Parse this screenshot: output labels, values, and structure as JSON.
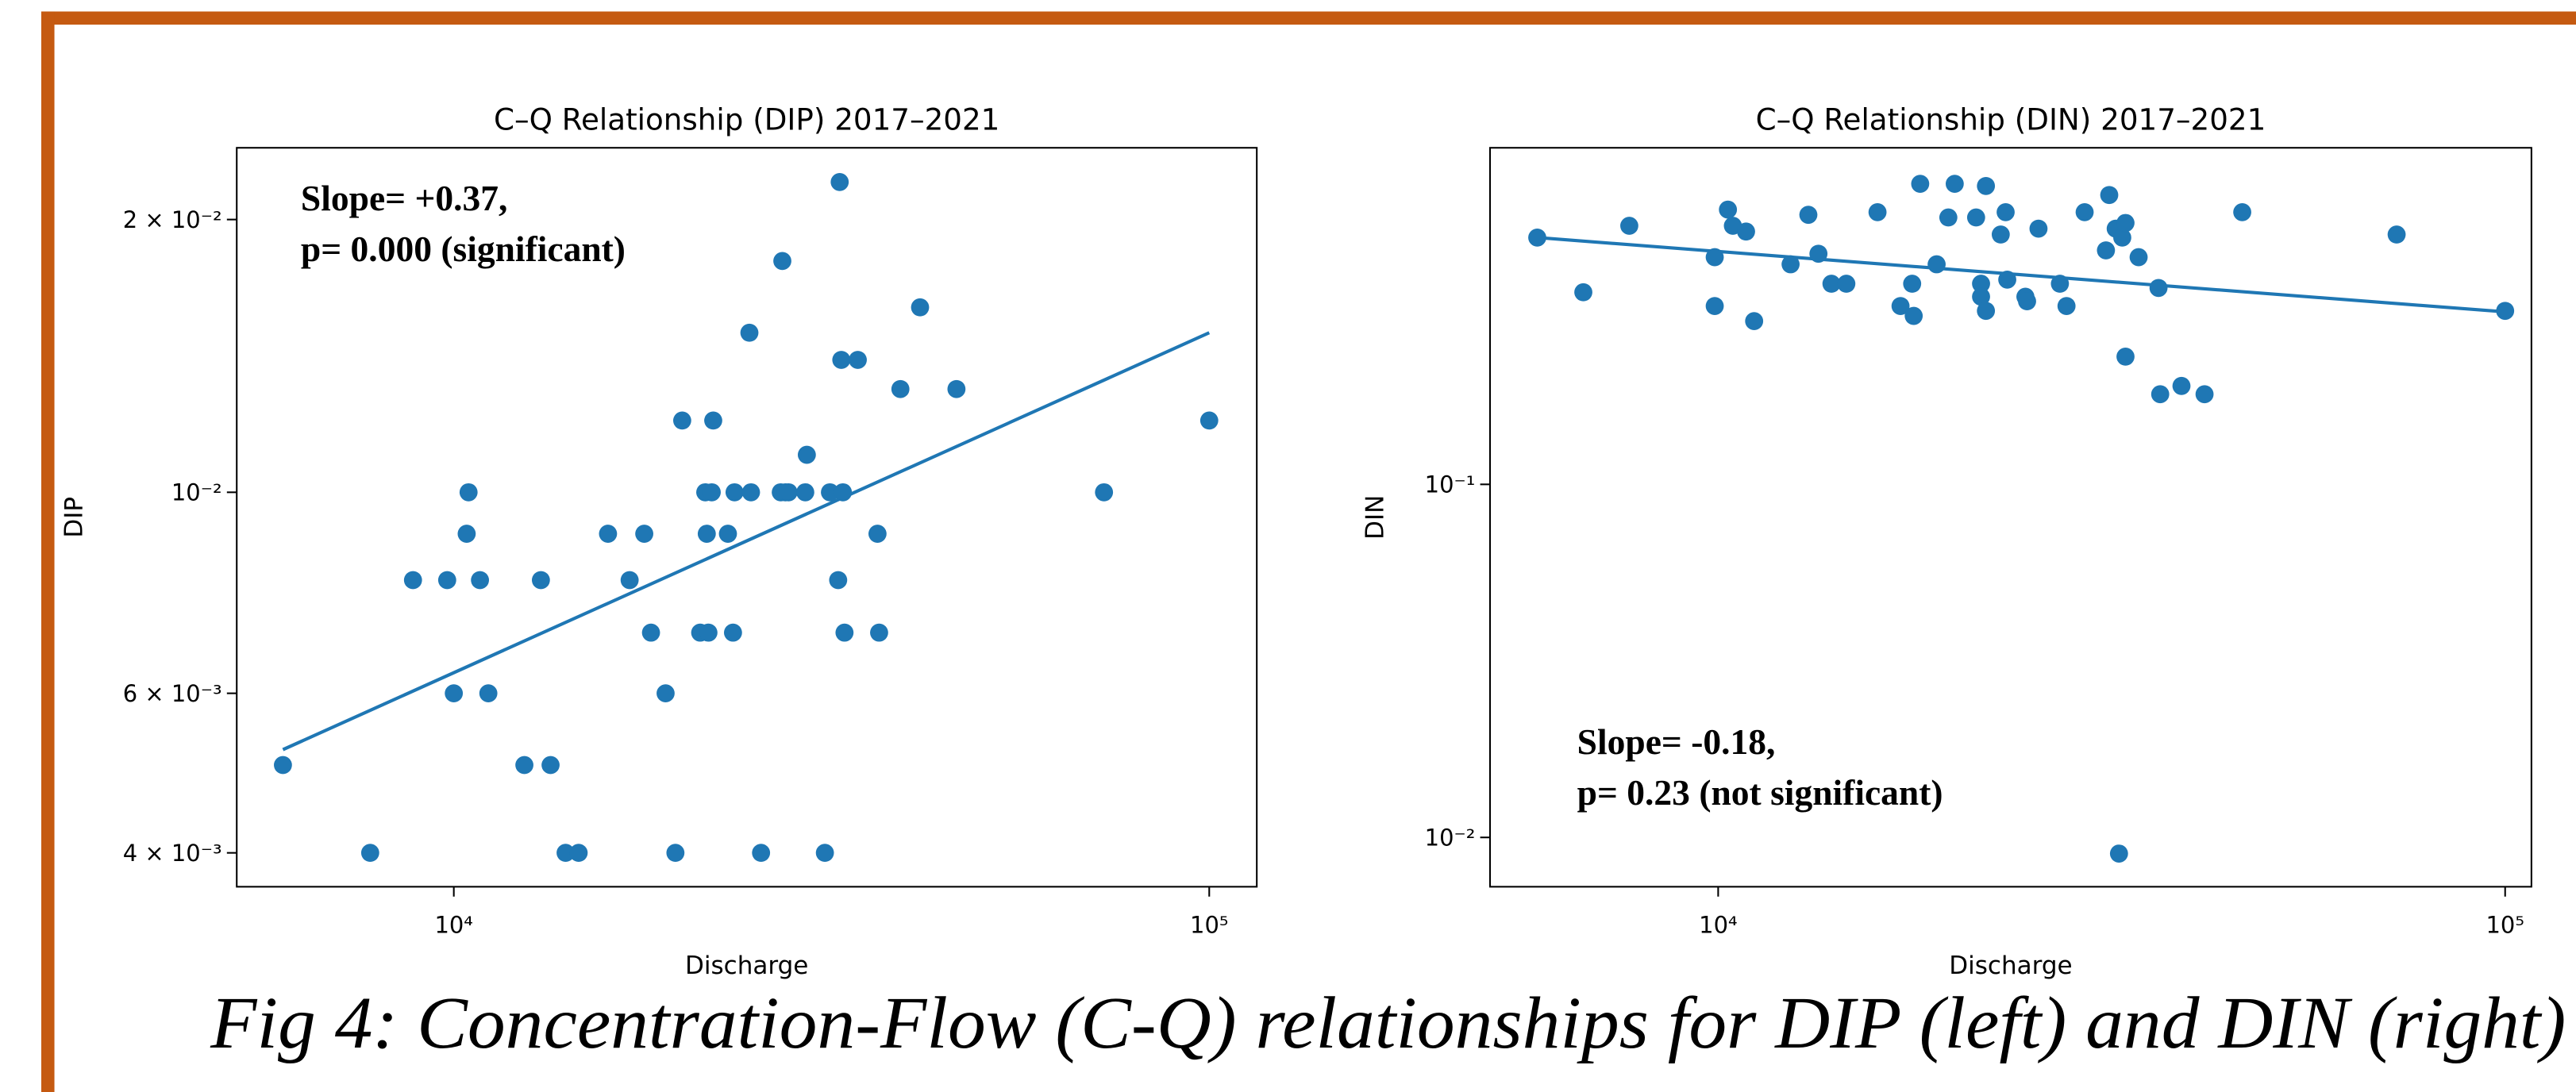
{
  "chart_data": [
    {
      "type": "scatter",
      "title": "C–Q Relationship (DIP) 2017–2021",
      "x_label": "Discharge",
      "y_label": "DIP",
      "log_x": true,
      "log_y": true,
      "color": "#1f77b4",
      "xlim": [
        5160,
        115600
      ],
      "ylim": [
        0.00367,
        0.024
      ],
      "xticks": [
        {
          "value": 10000,
          "label": "10⁴"
        },
        {
          "value": 100000,
          "label": "10⁵"
        }
      ],
      "yticks": [
        {
          "value": 0.02,
          "label": "2 × 10⁻²"
        },
        {
          "value": 0.01,
          "label": "10⁻²"
        },
        {
          "value": 0.006,
          "label": "6 × 10⁻³"
        },
        {
          "value": 0.004,
          "label": "4 × 10⁻³"
        }
      ],
      "x": [
        5940,
        7750,
        8830,
        9800,
        10000,
        10400,
        10460,
        10830,
        11110,
        12400,
        13040,
        13430,
        14060,
        14630,
        16000,
        17090,
        17870,
        18240,
        19070,
        19650,
        20060,
        21190,
        21520,
        21620,
        21730,
        21950,
        22050,
        23060,
        23420,
        23530,
        24620,
        24740,
        25510,
        27090,
        27220,
        27480,
        27740,
        29190,
        29330,
        30990,
        31470,
        32270,
        32420,
        32580,
        32740,
        32900,
        34260,
        36380,
        36560,
        39010,
        41420,
        46280,
        72560,
        100000
      ],
      "y": [
        0.005,
        0.004,
        0.008,
        0.008,
        0.006,
        0.009,
        0.01,
        0.008,
        0.006,
        0.005,
        0.008,
        0.005,
        0.004,
        0.004,
        0.009,
        0.008,
        0.009,
        0.007,
        0.006,
        0.004,
        0.012,
        0.007,
        0.01,
        0.009,
        0.007,
        0.01,
        0.012,
        0.009,
        0.007,
        0.01,
        0.015,
        0.01,
        0.004,
        0.01,
        0.018,
        0.01,
        0.01,
        0.01,
        0.011,
        0.004,
        0.01,
        0.008,
        0.022,
        0.014,
        0.01,
        0.007,
        0.014,
        0.009,
        0.007,
        0.013,
        0.016,
        0.013,
        0.01,
        0.012
      ],
      "fit": {
        "x": [
          5940,
          100000
        ],
        "y": [
          0.0052,
          0.015
        ]
      },
      "annotations": [
        "Slope= +0.37,",
        "p= 0.000 (significant)"
      ]
    },
    {
      "type": "scatter",
      "title": "C–Q Relationship (DIN) 2017–2021",
      "x_label": "Discharge",
      "y_label": "DIN",
      "log_x": true,
      "log_y": true,
      "color": "#1f77b4",
      "xlim": [
        5130,
        108000
      ],
      "ylim": [
        0.00725,
        0.898
      ],
      "xticks": [
        {
          "value": 10000,
          "label": "10⁴"
        },
        {
          "value": 100000,
          "label": "10⁵"
        }
      ],
      "yticks": [
        {
          "value": 0.1,
          "label": "10⁻¹"
        },
        {
          "value": 0.01,
          "label": "10⁻²"
        }
      ],
      "x": [
        5890,
        6740,
        7710,
        9900,
        9900,
        10290,
        10440,
        10850,
        11110,
        12360,
        13020,
        13410,
        13930,
        14550,
        15940,
        17050,
        17640,
        17720,
        18060,
        18950,
        19610,
        19980,
        21270,
        21580,
        21580,
        21890,
        21890,
        22860,
        23190,
        23300,
        24570,
        24690,
        25530,
        27180,
        27710,
        29220,
        31100,
        31400,
        32000,
        32310,
        32620,
        32930,
        32930,
        34220,
        36270,
        36450,
        38790,
        41500,
        46340,
        72800,
        100000
      ],
      "y": [
        0.5,
        0.35,
        0.54,
        0.44,
        0.32,
        0.6,
        0.54,
        0.52,
        0.29,
        0.42,
        0.58,
        0.45,
        0.37,
        0.37,
        0.59,
        0.32,
        0.37,
        0.3,
        0.71,
        0.42,
        0.57,
        0.71,
        0.57,
        0.37,
        0.34,
        0.7,
        0.31,
        0.51,
        0.59,
        0.38,
        0.34,
        0.33,
        0.53,
        0.37,
        0.32,
        0.59,
        0.46,
        0.66,
        0.53,
        0.009,
        0.5,
        0.55,
        0.23,
        0.44,
        0.36,
        0.18,
        0.19,
        0.18,
        0.59,
        0.51,
        0.31
      ],
      "fit": {
        "x": [
          5890,
          100000
        ],
        "y": [
          0.5,
          0.308
        ]
      },
      "annotations": [
        "Slope= -0.18,",
        "p= 0.23 (not significant)"
      ]
    }
  ],
  "caption": "Fig 4: Concentration-Flow (C-Q) relationships for DIP (left) and DIN (right)"
}
